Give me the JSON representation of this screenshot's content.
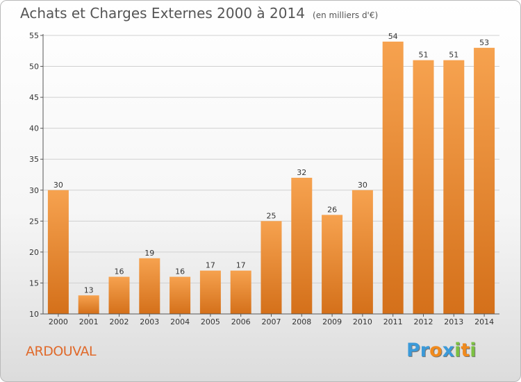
{
  "title": "Achats et Charges Externes 2000 à 2014",
  "unit": "(en milliers d'€)",
  "commune": "ARDOUVAL",
  "logo": {
    "text": "Proxiti",
    "letters": [
      {
        "ch": "P",
        "color": "#3b9ad9"
      },
      {
        "ch": "r",
        "color": "#3b9ad9"
      },
      {
        "ch": "o",
        "color": "#f08a1d"
      },
      {
        "ch": "x",
        "color": "#3b9ad9"
      },
      {
        "ch": "i",
        "color": "#7cc142"
      },
      {
        "ch": "t",
        "color": "#f08a1d"
      },
      {
        "ch": "i",
        "color": "#7cc142"
      }
    ]
  },
  "colors": {
    "bar_light": "#f6a24f",
    "bar_dark": "#d4701a",
    "grid": "#d0d0d0",
    "axis": "#555555"
  },
  "chart_data": {
    "type": "bar",
    "categories": [
      "2000",
      "2001",
      "2002",
      "2003",
      "2004",
      "2005",
      "2006",
      "2007",
      "2008",
      "2009",
      "2010",
      "2011",
      "2012",
      "2013",
      "2014"
    ],
    "values": [
      30,
      13,
      16,
      19,
      16,
      17,
      17,
      25,
      32,
      26,
      30,
      54,
      51,
      51,
      53
    ],
    "ylim": [
      10,
      55
    ],
    "yticks": [
      10,
      15,
      20,
      25,
      30,
      35,
      40,
      45,
      50,
      55
    ],
    "grid": true,
    "xlabel": "",
    "ylabel": ""
  }
}
